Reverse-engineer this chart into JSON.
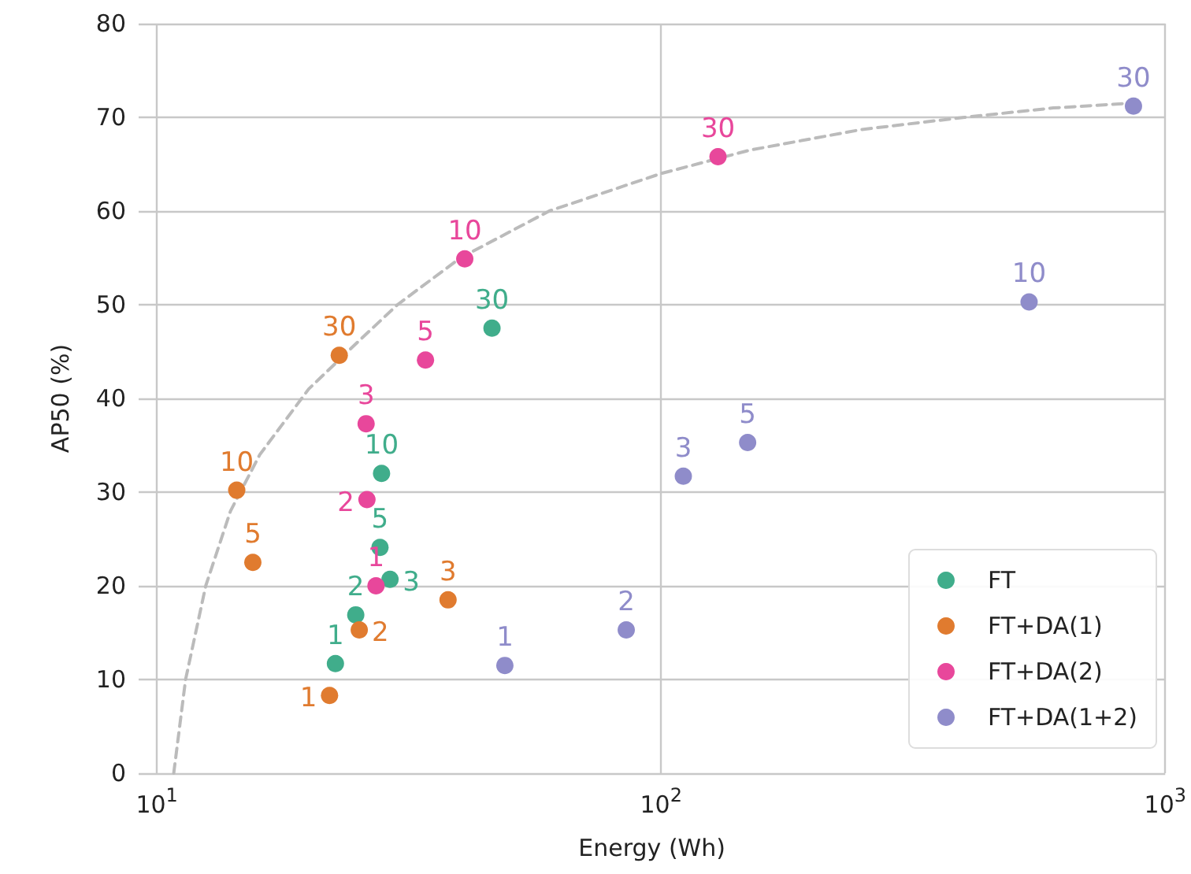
{
  "chart_data": {
    "type": "scatter",
    "xlabel": "Energy (Wh)",
    "ylabel": "AP50 (%)",
    "log": "x",
    "xlim": [
      9.2,
      1000
    ],
    "xticks": [
      {
        "value": 10,
        "label": "10$^{1}$"
      },
      {
        "value": 100,
        "label": "10$^{2}$"
      },
      {
        "value": 1000,
        "label": "10$^{3}$"
      }
    ],
    "ylim": [
      0,
      80
    ],
    "yticks": [
      0,
      10,
      20,
      30,
      40,
      50,
      60,
      70,
      80
    ],
    "grid": true,
    "legend": "bottom right",
    "series": [
      {
        "name": "FT",
        "color": "#40ad8b",
        "marker": "circle",
        "x": [
          22.6,
          24.8,
          29.0,
          27.7,
          27.9,
          46.2
        ],
        "values": [
          11.7,
          16.9,
          20.7,
          24.1,
          32.0,
          47.5
        ]
      },
      {
        "name": "FT+DA(1)",
        "color": "#e07b2f",
        "marker": "circle",
        "x": [
          22.0,
          25.2,
          37.8,
          15.5,
          14.4,
          23.0
        ],
        "values": [
          8.3,
          15.3,
          18.5,
          22.5,
          30.2,
          44.6
        ]
      },
      {
        "name": "FT+DA(2)",
        "color": "#e8479b",
        "marker": "circle",
        "x": [
          27.2,
          26.1,
          26.0,
          34.1,
          40.8,
          129.7
        ],
        "values": [
          20.0,
          29.2,
          37.3,
          44.1,
          54.9,
          65.8
        ]
      },
      {
        "name": "FT+DA(1+2)",
        "color": "#8f8cca",
        "marker": "circle",
        "x": [
          49.0,
          85.3,
          110.7,
          148.5,
          537,
          865
        ],
        "values": [
          11.5,
          15.3,
          31.7,
          35.3,
          50.3,
          71.2
        ]
      },
      {
        "type": "line",
        "color": "#bbbbbb",
        "marker": "none",
        "line_style": "dashed",
        "x": [
          10.8,
          11.4,
          12.5,
          14,
          16,
          20,
          25,
          30,
          40,
          60,
          100,
          150,
          250,
          400,
          600,
          850
        ],
        "values": [
          0,
          10,
          20,
          28,
          34,
          41,
          46,
          50,
          55,
          60,
          64,
          66.5,
          68.7,
          70,
          71,
          71.5
        ]
      }
    ],
    "annotations": [
      {
        "text": "1",
        "x": 22.6,
        "y": 11.7
      },
      {
        "text": "2",
        "x": 24.8,
        "y": 16.9
      },
      {
        "text": "3",
        "x": 29.0,
        "y": 20.7
      },
      {
        "text": "5",
        "x": 27.7,
        "y": 24.1
      },
      {
        "text": "10",
        "x": 27.9,
        "y": 32.0
      },
      {
        "text": "30",
        "x": 46.2,
        "y": 47.5
      },
      {
        "text": "1",
        "x": 22.0,
        "y": 8.3
      },
      {
        "text": "2",
        "x": 25.2,
        "y": 15.3
      },
      {
        "text": "3",
        "x": 37.8,
        "y": 18.5
      },
      {
        "text": "5",
        "x": 15.5,
        "y": 22.5
      },
      {
        "text": "10",
        "x": 14.4,
        "y": 30.2
      },
      {
        "text": "30",
        "x": 23.0,
        "y": 44.6
      },
      {
        "text": "1",
        "x": 27.2,
        "y": 20.0
      },
      {
        "text": "2",
        "x": 26.1,
        "y": 29.2
      },
      {
        "text": "3",
        "x": 26.0,
        "y": 37.3
      },
      {
        "text": "5",
        "x": 34.1,
        "y": 44.1
      },
      {
        "text": "10",
        "x": 40.8,
        "y": 54.9
      },
      {
        "text": "30",
        "x": 129.7,
        "y": 65.8
      },
      {
        "text": "1",
        "x": 49.0,
        "y": 11.5
      },
      {
        "text": "2",
        "x": 85.3,
        "y": 15.3
      },
      {
        "text": "3",
        "x": 110.7,
        "y": 31.7
      },
      {
        "text": "5",
        "x": 148.5,
        "y": 35.3
      },
      {
        "text": "10",
        "x": 537,
        "y": 50.3
      },
      {
        "text": "30",
        "x": 865,
        "y": 71.2
      }
    ]
  }
}
